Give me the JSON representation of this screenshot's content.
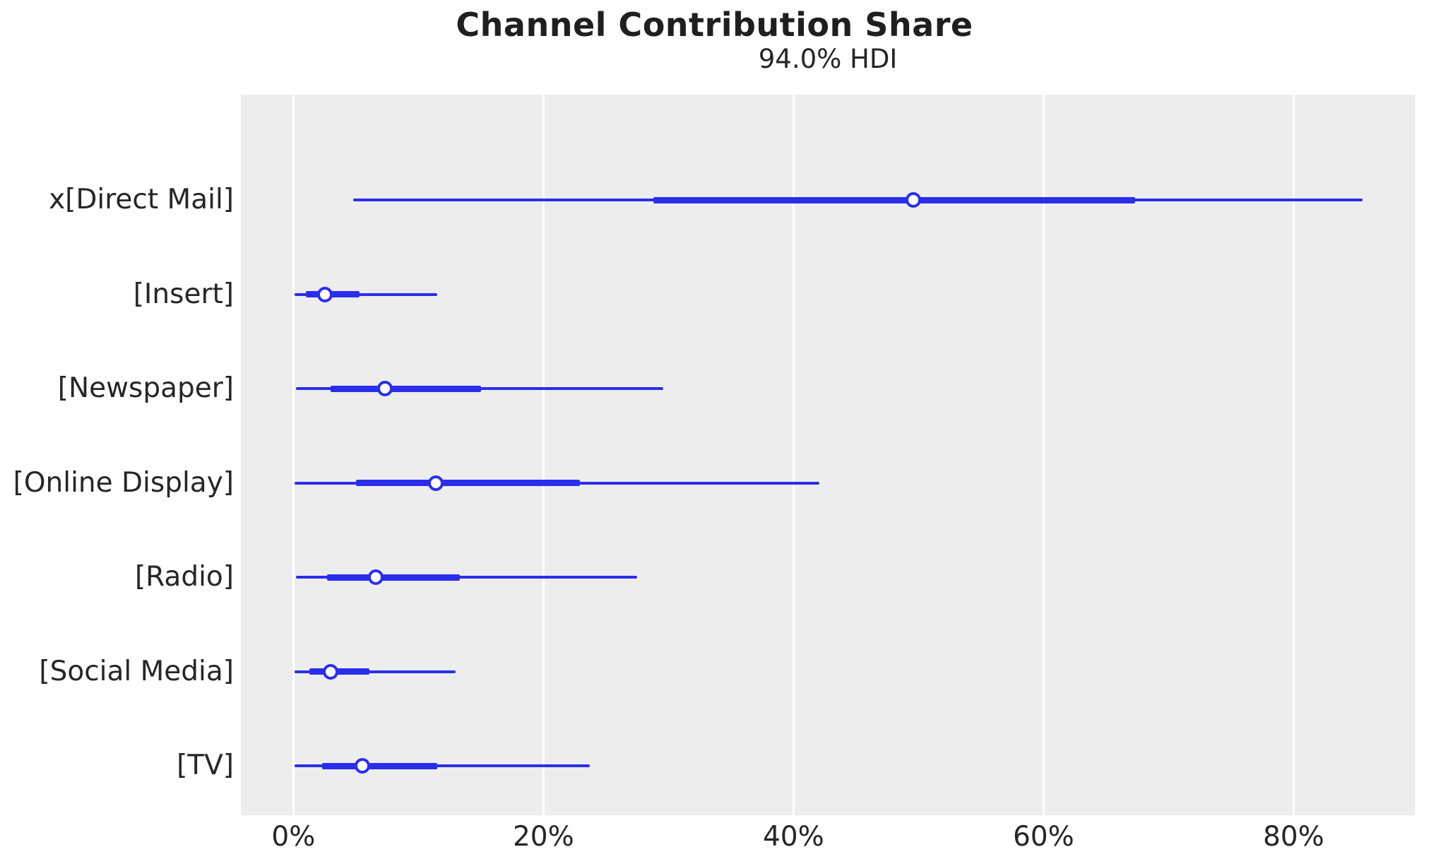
{
  "figure": {
    "title": "Channel Contribution Share",
    "subtitle": "94.0% HDI"
  },
  "chart_data": {
    "type": "forest",
    "title": "Channel Contribution Share",
    "subtitle": "94.0% HDI",
    "hdi_probability": "94.0%",
    "unit": "percent",
    "xlim": [
      -4.2,
      89.7
    ],
    "x_tick_values": [
      0,
      20,
      40,
      60,
      80
    ],
    "x_tick_labels": [
      "0%",
      "20%",
      "40%",
      "60%",
      "80%"
    ],
    "grid": "vertical-white-on-gray",
    "legend": "none",
    "categories": [
      "x[Direct Mail]",
      "[Insert]",
      "[Newspaper]",
      "[Online Display]",
      "[Radio]",
      "[Social Media]",
      "[TV]"
    ],
    "series": [
      {
        "label": "x[Direct Mail]",
        "hdi_low": 4.8,
        "q25": 28.8,
        "median": 49.6,
        "q75": 67.3,
        "hdi_high": 85.5
      },
      {
        "label": "[Insert]",
        "hdi_low": 0.1,
        "q25": 1.0,
        "median": 2.5,
        "q75": 5.3,
        "hdi_high": 11.5
      },
      {
        "label": "[Newspaper]",
        "hdi_low": 0.2,
        "q25": 3.0,
        "median": 7.3,
        "q75": 15.0,
        "hdi_high": 29.6
      },
      {
        "label": "[Online Display]",
        "hdi_low": 0.1,
        "q25": 5.0,
        "median": 11.4,
        "q75": 22.9,
        "hdi_high": 42.1
      },
      {
        "label": "[Radio]",
        "hdi_low": 0.2,
        "q25": 2.7,
        "median": 6.6,
        "q75": 13.3,
        "hdi_high": 27.5
      },
      {
        "label": "[Social Media]",
        "hdi_low": 0.1,
        "q25": 1.3,
        "median": 3.0,
        "q75": 6.1,
        "hdi_high": 13.0
      },
      {
        "label": "[TV]",
        "hdi_low": 0.1,
        "q25": 2.3,
        "median": 5.5,
        "q75": 11.5,
        "hdi_high": 23.7
      }
    ],
    "colors": {
      "interval": "#2a2eec",
      "marker_fill": "#ffffff",
      "plot_background": "#ededed",
      "gridline": "#ffffff",
      "text": "#262626"
    }
  }
}
